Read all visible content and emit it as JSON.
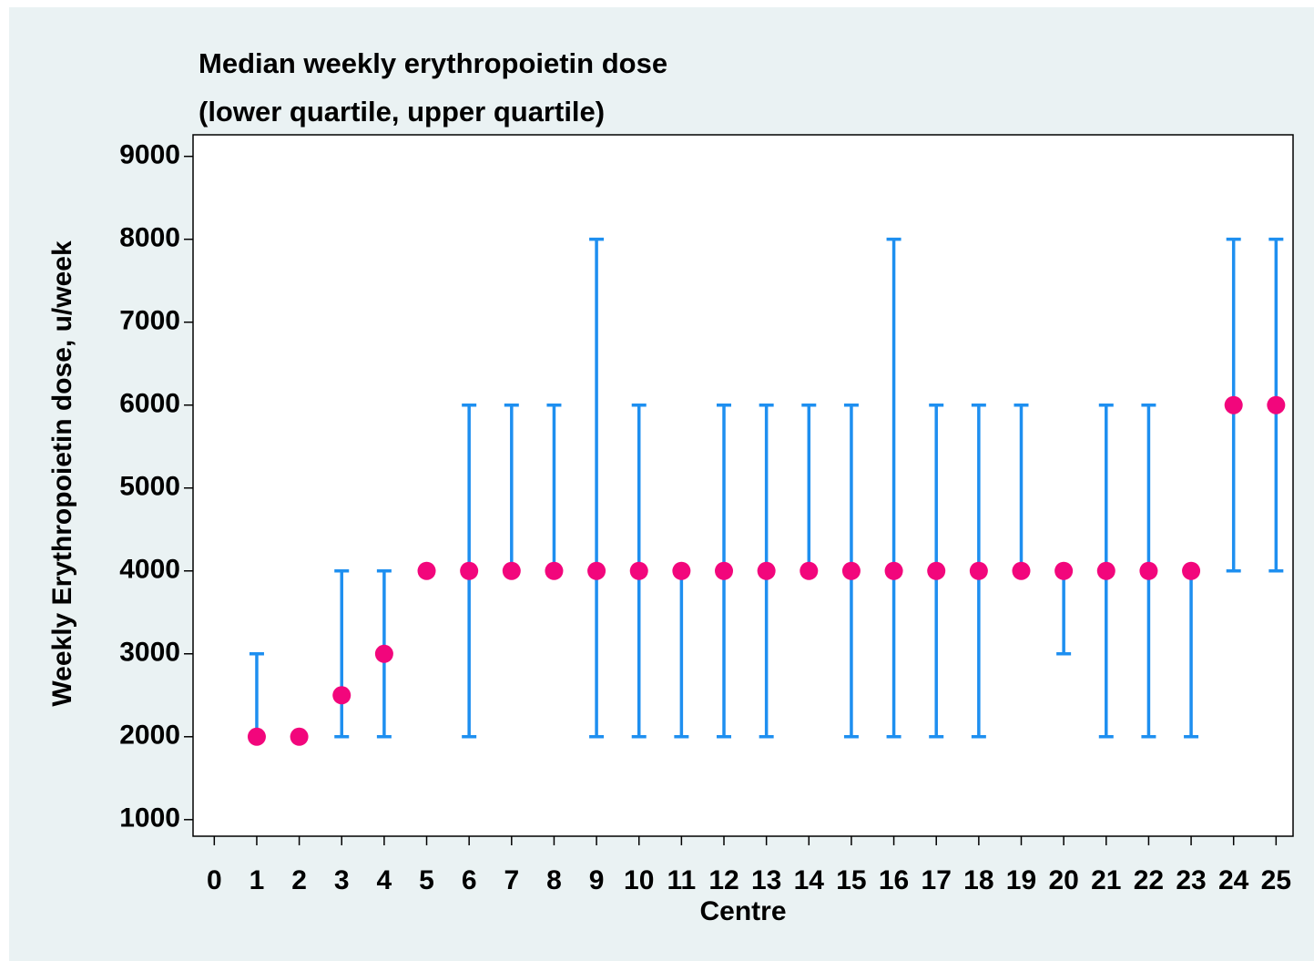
{
  "chart_data": {
    "type": "errorbar",
    "title": "Median weekly erythropoietin dose",
    "subtitle": "(lower quartile, upper quartile)",
    "x_label": "Centre",
    "y_label": "Weekly Erythropoietin dose, u/week",
    "x": [
      1,
      2,
      3,
      4,
      5,
      6,
      7,
      8,
      9,
      10,
      11,
      12,
      13,
      14,
      15,
      16,
      17,
      18,
      19,
      20,
      21,
      22,
      23,
      24,
      25
    ],
    "values": [
      2000,
      2000,
      2500,
      3000,
      4000,
      4000,
      4000,
      4000,
      4000,
      4000,
      4000,
      4000,
      4000,
      4000,
      4000,
      4000,
      4000,
      4000,
      4000,
      4000,
      4000,
      4000,
      4000,
      6000,
      6000
    ],
    "lower": [
      2000,
      2000,
      2000,
      2000,
      4000,
      2000,
      4000,
      4000,
      2000,
      2000,
      2000,
      2000,
      2000,
      4000,
      2000,
      2000,
      2000,
      2000,
      4000,
      3000,
      2000,
      2000,
      2000,
      4000,
      4000
    ],
    "upper": [
      3000,
      2000,
      4000,
      4000,
      4000,
      6000,
      6000,
      6000,
      8000,
      6000,
      4000,
      6000,
      6000,
      6000,
      6000,
      8000,
      6000,
      6000,
      6000,
      4000,
      6000,
      6000,
      4000,
      8000,
      8000
    ],
    "point_color": "#f2067c",
    "bar_color": "#1e8ff0",
    "xlim": [
      -0.5,
      25.4
    ],
    "ylim": [
      800,
      9260
    ],
    "xticks": [
      0,
      1,
      2,
      3,
      4,
      5,
      6,
      7,
      8,
      9,
      10,
      11,
      12,
      13,
      14,
      15,
      16,
      17,
      18,
      19,
      20,
      21,
      22,
      23,
      24,
      25
    ],
    "yticks": [
      1000,
      2000,
      3000,
      4000,
      5000,
      6000,
      7000,
      8000,
      9000
    ]
  }
}
